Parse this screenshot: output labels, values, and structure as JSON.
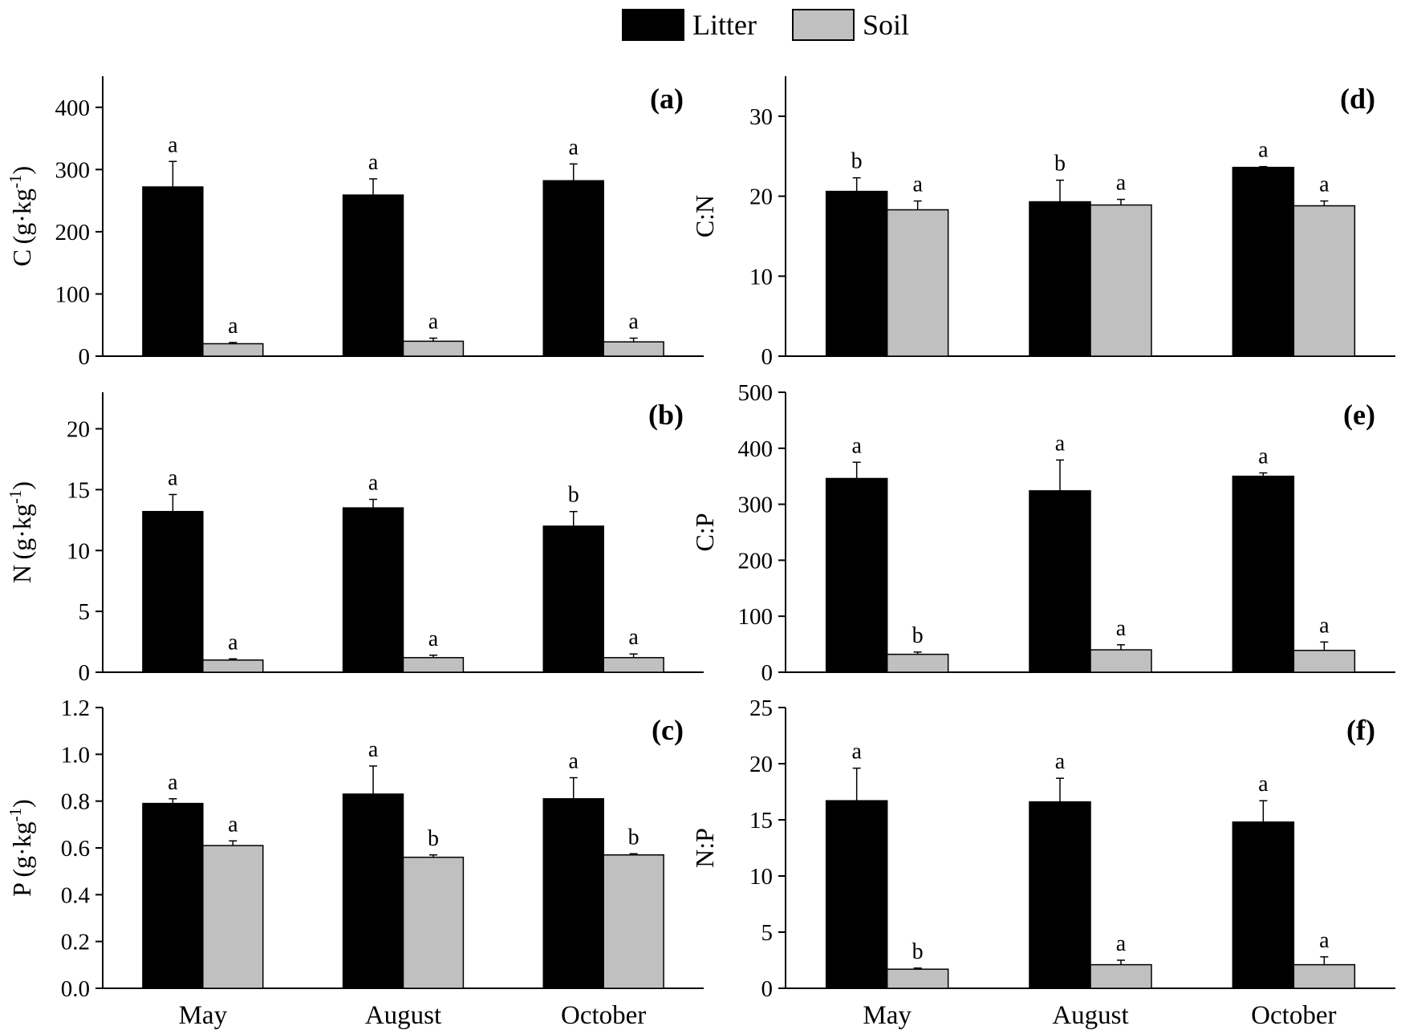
{
  "legend": {
    "litter_label": "Litter",
    "soil_label": "Soil",
    "litter_color": "#000000",
    "soil_color": "#c0c0c0"
  },
  "chart_data": [
    {
      "id": "a",
      "panel_label": "(a)",
      "type": "bar",
      "ylabel": "C (g·kg⁻¹)",
      "ylabel_main": "C",
      "ylabel_unit": "g·kg",
      "ylim": [
        0,
        450
      ],
      "yticks": [
        0,
        100,
        200,
        300,
        400
      ],
      "ytick_labels": [
        "0",
        "100",
        "200",
        "300",
        "400"
      ],
      "categories": [
        "May",
        "August",
        "October"
      ],
      "show_xlabels": false,
      "series": [
        {
          "name": "Litter",
          "values": [
            272,
            259,
            282
          ],
          "errors": [
            41,
            26,
            27
          ],
          "letters": [
            "a",
            "a",
            "a"
          ]
        },
        {
          "name": "Soil",
          "values": [
            20,
            24,
            23
          ],
          "errors": [
            2,
            5,
            6
          ],
          "letters": [
            "a",
            "a",
            "a"
          ]
        }
      ]
    },
    {
      "id": "b",
      "panel_label": "(b)",
      "type": "bar",
      "ylabel": "N (g·kg⁻¹)",
      "ylabel_main": "N",
      "ylabel_unit": "g·kg",
      "ylim": [
        0,
        23
      ],
      "yticks": [
        0,
        5,
        10,
        15,
        20
      ],
      "ytick_labels": [
        "0",
        "5",
        "10",
        "15",
        "20"
      ],
      "categories": [
        "May",
        "August",
        "October"
      ],
      "show_xlabels": false,
      "series": [
        {
          "name": "Litter",
          "values": [
            13.2,
            13.5,
            12.0
          ],
          "errors": [
            1.4,
            0.7,
            1.2
          ],
          "letters": [
            "a",
            "a",
            "b"
          ]
        },
        {
          "name": "Soil",
          "values": [
            1.0,
            1.2,
            1.2
          ],
          "errors": [
            0.1,
            0.2,
            0.3
          ],
          "letters": [
            "a",
            "a",
            "a"
          ]
        }
      ]
    },
    {
      "id": "c",
      "panel_label": "(c)",
      "type": "bar",
      "ylabel": "P (g·kg⁻¹)",
      "ylabel_main": "P",
      "ylabel_unit": "g·kg",
      "ylim": [
        0,
        1.2
      ],
      "yticks": [
        0,
        0.2,
        0.4,
        0.6,
        0.8,
        1.0,
        1.2
      ],
      "ytick_labels": [
        "0.0",
        "0.2",
        "0.4",
        "0.6",
        "0.8",
        "1.0",
        "1.2"
      ],
      "categories": [
        "May",
        "August",
        "October"
      ],
      "show_xlabels": true,
      "series": [
        {
          "name": "Litter",
          "values": [
            0.79,
            0.83,
            0.81
          ],
          "errors": [
            0.02,
            0.12,
            0.09
          ],
          "letters": [
            "a",
            "a",
            "a"
          ]
        },
        {
          "name": "Soil",
          "values": [
            0.61,
            0.56,
            0.57
          ],
          "errors": [
            0.02,
            0.01,
            0.005
          ],
          "letters": [
            "a",
            "b",
            "b"
          ]
        }
      ]
    },
    {
      "id": "d",
      "panel_label": "(d)",
      "type": "bar",
      "ylabel": "C:N",
      "ylabel_main": "C:N",
      "ylabel_unit": "",
      "ylim": [
        0,
        35
      ],
      "yticks": [
        0,
        10,
        20,
        30
      ],
      "ytick_labels": [
        "0",
        "10",
        "20",
        "30"
      ],
      "categories": [
        "May",
        "August",
        "October"
      ],
      "show_xlabels": false,
      "series": [
        {
          "name": "Litter",
          "values": [
            20.6,
            19.3,
            23.6
          ],
          "errors": [
            1.7,
            2.7,
            0.1
          ],
          "letters": [
            "b",
            "b",
            "a"
          ]
        },
        {
          "name": "Soil",
          "values": [
            18.3,
            18.9,
            18.8
          ],
          "errors": [
            1.1,
            0.7,
            0.6
          ],
          "letters": [
            "a",
            "a",
            "a"
          ]
        }
      ]
    },
    {
      "id": "e",
      "panel_label": "(e)",
      "type": "bar",
      "ylabel": "C:P",
      "ylabel_main": "C:P",
      "ylabel_unit": "",
      "ylim": [
        0,
        500
      ],
      "yticks": [
        0,
        100,
        200,
        300,
        400,
        500
      ],
      "ytick_labels": [
        "0",
        "100",
        "200",
        "300",
        "400",
        "500"
      ],
      "categories": [
        "May",
        "August",
        "October"
      ],
      "show_xlabels": false,
      "series": [
        {
          "name": "Litter",
          "values": [
            346,
            324,
            350
          ],
          "errors": [
            29,
            55,
            6
          ],
          "letters": [
            "a",
            "a",
            "a"
          ]
        },
        {
          "name": "Soil",
          "values": [
            32,
            40,
            39
          ],
          "errors": [
            4,
            9,
            15
          ],
          "letters": [
            "b",
            "a",
            "a"
          ]
        }
      ]
    },
    {
      "id": "f",
      "panel_label": "(f)",
      "type": "bar",
      "ylabel": "N:P",
      "ylabel_main": "N:P",
      "ylabel_unit": "",
      "ylim": [
        0,
        25
      ],
      "yticks": [
        0,
        5,
        10,
        15,
        20,
        25
      ],
      "ytick_labels": [
        "0",
        "5",
        "10",
        "15",
        "20",
        "25"
      ],
      "categories": [
        "May",
        "August",
        "October"
      ],
      "show_xlabels": true,
      "series": [
        {
          "name": "Litter",
          "values": [
            16.7,
            16.6,
            14.8
          ],
          "errors": [
            2.9,
            2.1,
            1.9
          ],
          "letters": [
            "a",
            "a",
            "a"
          ]
        },
        {
          "name": "Soil",
          "values": [
            1.7,
            2.1,
            2.1
          ],
          "errors": [
            0.1,
            0.4,
            0.7
          ],
          "letters": [
            "b",
            "a",
            "a"
          ]
        }
      ]
    }
  ]
}
